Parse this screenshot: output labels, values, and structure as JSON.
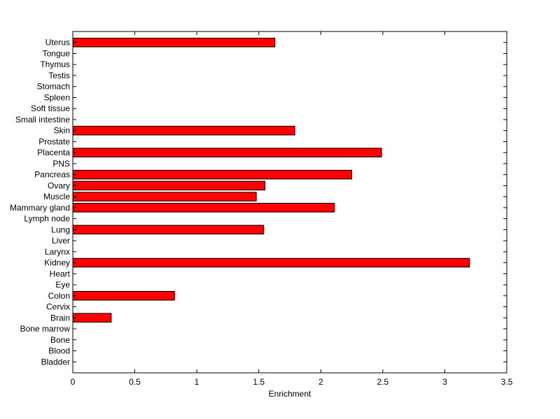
{
  "chart_data": {
    "type": "bar",
    "orientation": "horizontal",
    "xlabel": "Enrichment",
    "ylabel": "",
    "title": "",
    "xlim": [
      0,
      3.5
    ],
    "x_ticks": [
      0,
      0.5,
      1,
      1.5,
      2,
      2.5,
      3,
      3.5
    ],
    "x_tick_labels": [
      "0",
      "0.5",
      "1",
      "1.5",
      "2",
      "2.5",
      "3",
      "3.5"
    ],
    "grid": false,
    "bar_color": "#ff0000",
    "categories": [
      "Bladder",
      "Blood",
      "Bone",
      "Bone marrow",
      "Brain",
      "Cervix",
      "Colon",
      "Eye",
      "Heart",
      "Kidney",
      "Larynx",
      "Liver",
      "Lung",
      "Lymph node",
      "Mammary gland",
      "Muscle",
      "Ovary",
      "Pancreas",
      "PNS",
      "Placenta",
      "Prostate",
      "Skin",
      "Small intestine",
      "Soft tissue",
      "Spleen",
      "Stomach",
      "Testis",
      "Thymus",
      "Tongue",
      "Uterus"
    ],
    "values": [
      0,
      0,
      0,
      0,
      0.31,
      0,
      0.82,
      0,
      0,
      3.2,
      0,
      0,
      1.54,
      0,
      2.11,
      1.48,
      1.55,
      2.25,
      0,
      2.49,
      0,
      1.79,
      0,
      0,
      0,
      0,
      0,
      0,
      0,
      1.63
    ]
  }
}
